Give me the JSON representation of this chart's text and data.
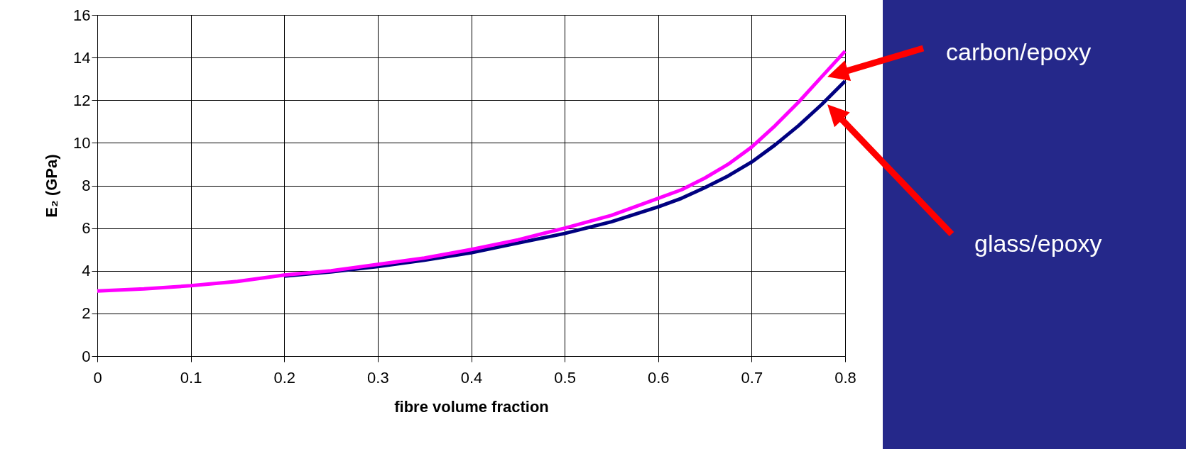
{
  "chart_data": {
    "type": "line",
    "xlabel": "fibre volume fraction",
    "ylabel": "E₂ (GPa)",
    "xlim": [
      0,
      0.8
    ],
    "xticks": [
      0,
      0.1,
      0.2,
      0.3,
      0.4,
      0.5,
      0.6,
      0.7,
      0.8
    ],
    "ylim": [
      0,
      16
    ],
    "yticks": [
      0,
      2,
      4,
      6,
      8,
      10,
      12,
      14,
      16
    ],
    "grid": true,
    "legend": false,
    "marker": "none",
    "line_style": "solid",
    "x": [
      0,
      0.05,
      0.1,
      0.15,
      0.2,
      0.25,
      0.3,
      0.35,
      0.4,
      0.45,
      0.5,
      0.55,
      0.6,
      0.625,
      0.65,
      0.675,
      0.7,
      0.725,
      0.75,
      0.775,
      0.8
    ],
    "series": [
      {
        "name": "glass/epoxy",
        "color": "#000080",
        "values": [
          null,
          null,
          null,
          null,
          3.75,
          3.95,
          4.2,
          4.5,
          4.85,
          5.3,
          5.75,
          6.3,
          7.0,
          7.4,
          7.9,
          8.45,
          9.1,
          9.9,
          10.8,
          11.8,
          12.9
        ]
      },
      {
        "name": "carbon/epoxy",
        "color": "#ff00ff",
        "values": [
          3.05,
          3.15,
          3.3,
          3.5,
          3.8,
          4.0,
          4.3,
          4.6,
          5.0,
          5.45,
          6.0,
          6.6,
          7.4,
          7.8,
          8.35,
          9.0,
          9.8,
          10.8,
          11.9,
          13.1,
          14.3
        ]
      }
    ]
  }
}
